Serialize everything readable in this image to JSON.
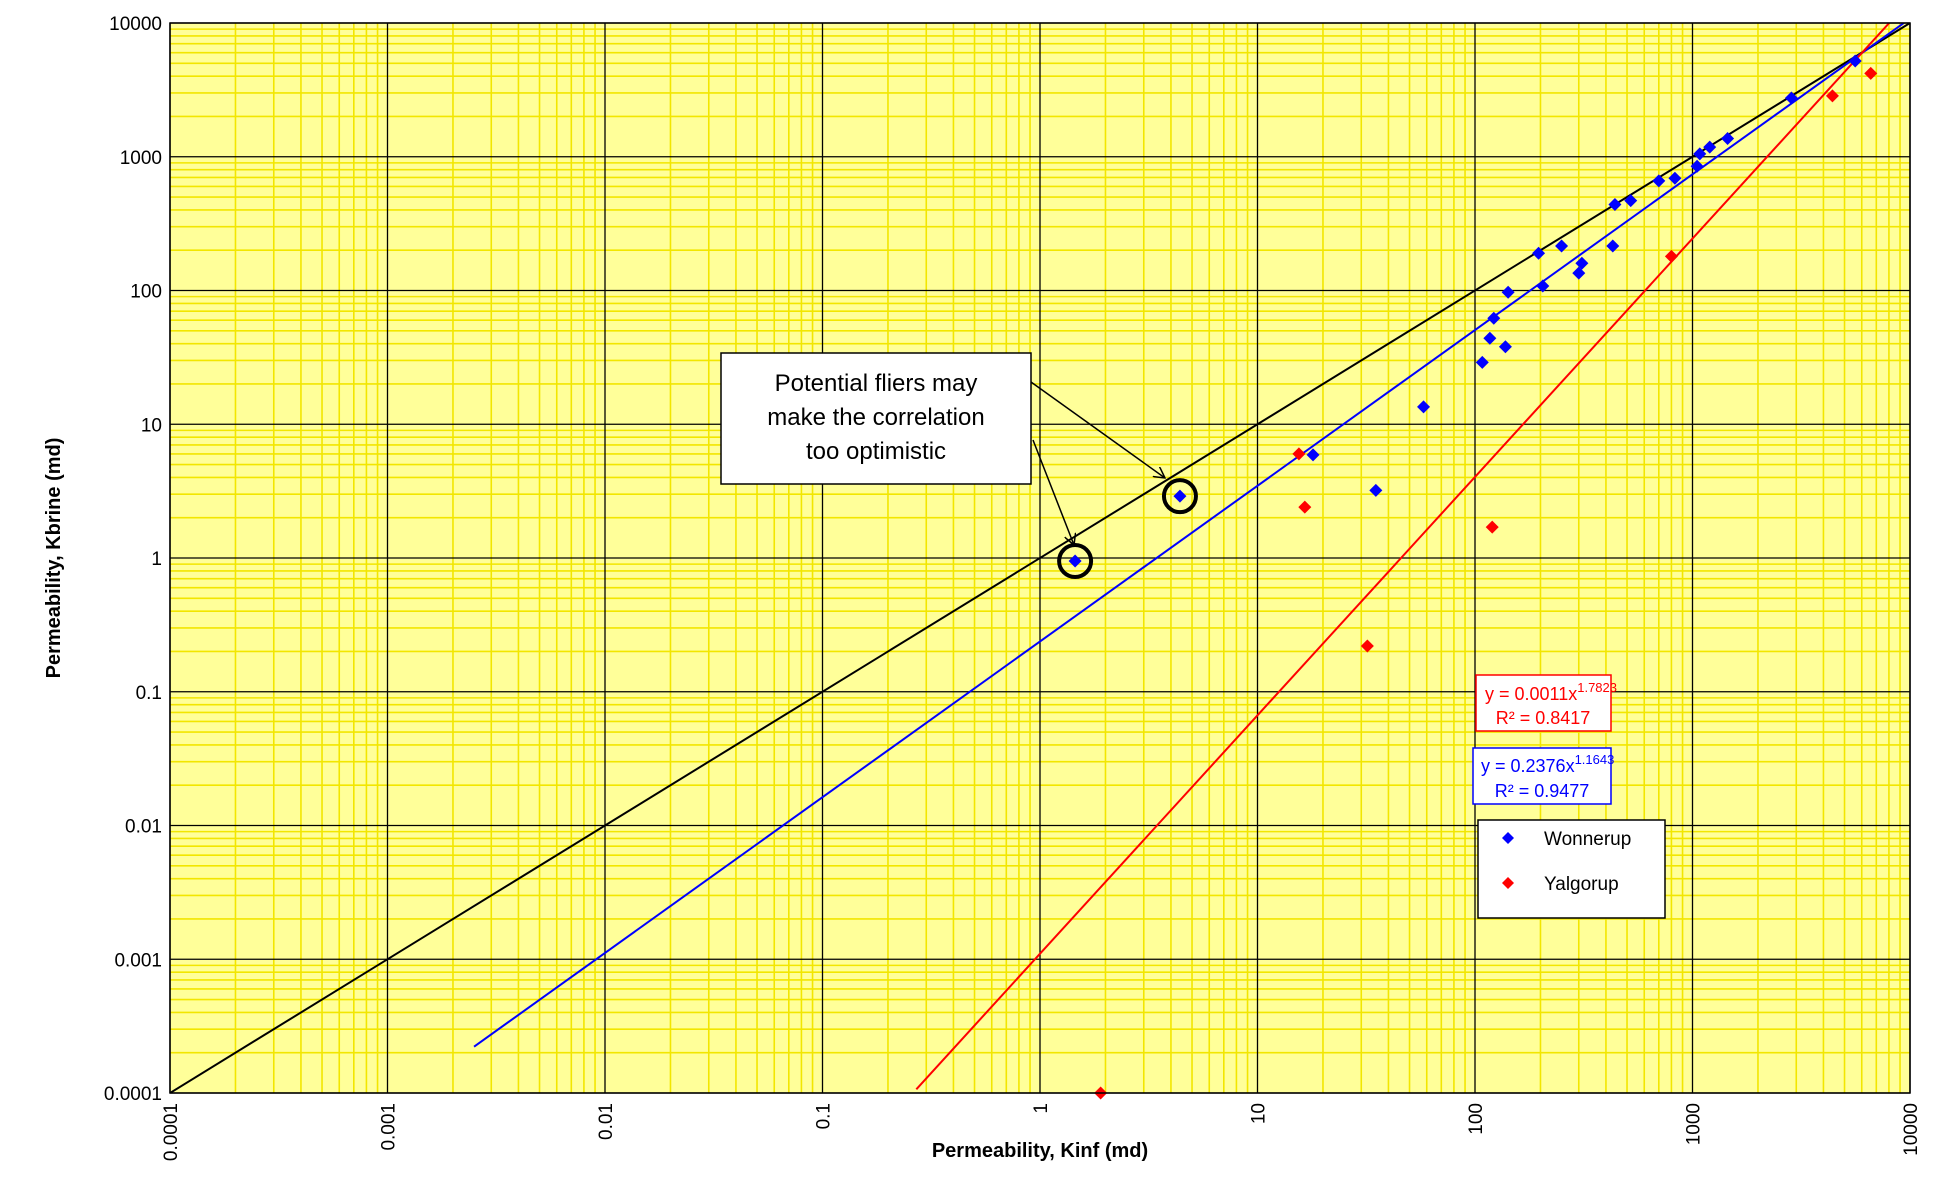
{
  "chart_data": {
    "type": "scatter",
    "xlabel": "Permeability, Kinf (md)",
    "ylabel": "Permeability, Kbrine (md)",
    "x_scale": "log",
    "y_scale": "log",
    "xlim": [
      0.0001,
      10000
    ],
    "ylim": [
      0.0001,
      10000
    ],
    "x_tick_labels": [
      "0.0001",
      "0.001",
      "0.01",
      "0.1",
      "1",
      "10",
      "100",
      "1000",
      "10000"
    ],
    "y_tick_labels": [
      "0.0001",
      "0.001",
      "0.01",
      "0.1",
      "1",
      "10",
      "100",
      "1000",
      "10000"
    ],
    "grid": true,
    "plot_background": "#ffff99",
    "minor_grid_color": "#f2e600",
    "major_grid_color": "#000000",
    "legend_position": "lower-right",
    "series": [
      {
        "name": "Wonnerup",
        "color": "#0000ff",
        "marker": "diamond",
        "points": [
          [
            1.45,
            0.95
          ],
          [
            4.4,
            2.9
          ],
          [
            18,
            5.9
          ],
          [
            35,
            3.2
          ],
          [
            58,
            13.5
          ],
          [
            108,
            29
          ],
          [
            117,
            44
          ],
          [
            122,
            62
          ],
          [
            138,
            38
          ],
          [
            142,
            97
          ],
          [
            196,
            190
          ],
          [
            205,
            108
          ],
          [
            250,
            215
          ],
          [
            300,
            135
          ],
          [
            310,
            160
          ],
          [
            430,
            215
          ],
          [
            440,
            440
          ],
          [
            520,
            470
          ],
          [
            700,
            660
          ],
          [
            830,
            690
          ],
          [
            1050,
            850
          ],
          [
            1080,
            1050
          ],
          [
            1200,
            1180
          ],
          [
            1450,
            1370
          ],
          [
            2850,
            2750
          ],
          [
            5600,
            5200
          ]
        ]
      },
      {
        "name": "Yalgorup",
        "color": "#ff0000",
        "marker": "diamond",
        "points": [
          [
            1.9,
            0.0001
          ],
          [
            15.5,
            6.0
          ],
          [
            16.5,
            2.4
          ],
          [
            32,
            0.22
          ],
          [
            120,
            1.7
          ],
          [
            800,
            180
          ],
          [
            4400,
            2850
          ],
          [
            6600,
            4200
          ]
        ]
      }
    ],
    "trendlines": [
      {
        "series": "Wonnerup",
        "color": "#0000ff",
        "a": 0.2376,
        "b": 1.1643,
        "x_range": [
          0.0025,
          10000
        ],
        "equation_text": "y = 0.2376x",
        "exponent_text": "1.1643",
        "r2_text": "R² = 0.9477"
      },
      {
        "series": "Yalgorup",
        "color": "#ff0000",
        "a": 0.0011,
        "b": 1.7823,
        "x_range": [
          0.27,
          10000
        ],
        "equation_text": "y = 0.0011x",
        "exponent_text": "1.7823",
        "r2_text": "R² = 0.8417"
      }
    ],
    "reference_line": {
      "color": "#000000",
      "x_range": [
        0.0001,
        10000
      ]
    },
    "annotation": {
      "lines": [
        "Potential fliers may",
        "make the correlation",
        "too optimistic"
      ],
      "targets": [
        [
          1.45,
          0.95
        ],
        [
          4.4,
          2.9
        ]
      ]
    }
  }
}
